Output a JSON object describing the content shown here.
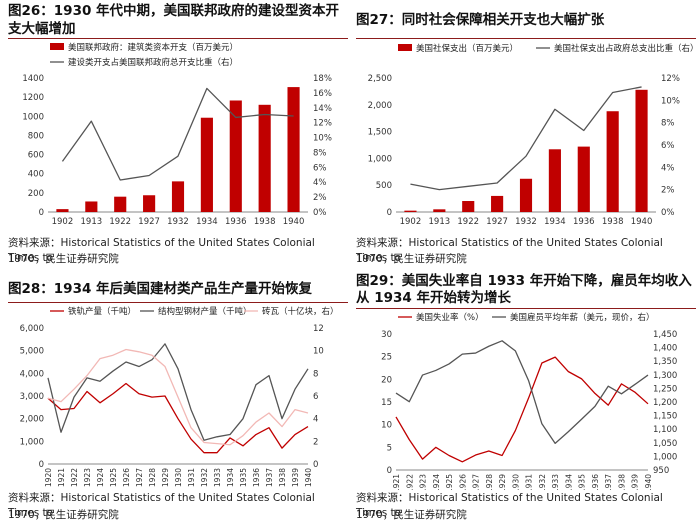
{
  "colors": {
    "red": "#c00000",
    "dark": "#555555",
    "pink": "#f2b8b5",
    "title_rule": "#8c1b1b"
  },
  "panels": [
    {
      "title_line1": "图26：1930 年代中期，美国联邦政府的建设型资本开",
      "title_line2": "支大幅增加",
      "source_line1": "资料来源：Historical Statistics of the United States Colonial Times to",
      "source_line2": "1970，民生证券研究院"
    },
    {
      "title_line1": "图27：同时社会保障相关开支也大幅扩张",
      "title_line2": "",
      "source_line1": "资料来源：Historical Statistics of the United States Colonial Times to",
      "source_line2": "1970，民生证券研究院"
    },
    {
      "title_line1": "图28：1934 年后美国建材类产品生产量开始恢复",
      "title_line2": "",
      "source_line1": "资料来源：Historical Statistics of the United States Colonial Times to",
      "source_line2": "1970，民生证券研究院"
    },
    {
      "title_line1": "图29：美国失业率自 1933 年开始下降，雇员年均收入",
      "title_line2": "从 1934 年开始转为增长",
      "source_line1": "资料来源：Historical Statistics of the United States Colonial Times to",
      "source_line2": "1970，民生证券研究院"
    }
  ],
  "chart_data": [
    {
      "type": "bar+line",
      "categories": [
        "1902",
        "1913",
        "1922",
        "1927",
        "1932",
        "1934",
        "1936",
        "1938",
        "1940"
      ],
      "series": [
        {
          "name": "美国联邦政府：建筑类资本开支（百万美元）",
          "kind": "bar",
          "axis": "left",
          "values": [
            30,
            110,
            160,
            175,
            320,
            985,
            1165,
            1120,
            1305
          ]
        },
        {
          "name": "建设类开支占美国联邦政府总开支比重（右）",
          "kind": "line",
          "axis": "right",
          "values": [
            6.8,
            12.2,
            4.3,
            4.9,
            7.5,
            16.6,
            12.7,
            13.1,
            12.9
          ]
        }
      ],
      "ylim_left": [
        0,
        1400
      ],
      "yticks_left": [
        0,
        200,
        400,
        600,
        800,
        1000,
        1200,
        1400
      ],
      "ylim_right": [
        0,
        18
      ],
      "yticks_right": [
        0,
        2,
        4,
        6,
        8,
        10,
        12,
        14,
        16,
        18
      ],
      "left_tick_labels": [
        "0",
        "200",
        "400",
        "600",
        "800",
        "1000",
        "1200",
        "1400"
      ],
      "right_tick_labels": [
        "0%",
        "2%",
        "4%",
        "6%",
        "8%",
        "10%",
        "12%",
        "14%",
        "16%",
        "18%"
      ]
    },
    {
      "type": "bar+line",
      "categories": [
        "1902",
        "1913",
        "1922",
        "1927",
        "1932",
        "1934",
        "1936",
        "1938",
        "1940"
      ],
      "series": [
        {
          "name": "美国社保支出（百万美元）",
          "kind": "bar",
          "axis": "left",
          "values": [
            25,
            50,
            205,
            300,
            620,
            1170,
            1220,
            1880,
            2280
          ]
        },
        {
          "name": "美国社保支出占政府总支出比重（右）",
          "kind": "line",
          "axis": "right",
          "values": [
            2.5,
            2.0,
            2.3,
            2.6,
            5.0,
            9.2,
            7.3,
            10.7,
            11.2
          ]
        }
      ],
      "ylim_left": [
        0,
        2500
      ],
      "yticks_left": [
        0,
        500,
        1000,
        1500,
        2000,
        2500
      ],
      "ylim_right": [
        0,
        12
      ],
      "yticks_right": [
        0,
        2,
        4,
        6,
        8,
        10,
        12
      ],
      "left_tick_labels": [
        "0",
        "500",
        "1,000",
        "1,500",
        "2,000",
        "2,500"
      ],
      "right_tick_labels": [
        "0%",
        "2%",
        "4%",
        "6%",
        "8%",
        "10%",
        "12%"
      ]
    },
    {
      "type": "line",
      "x": [
        "1920",
        "1921",
        "1922",
        "1923",
        "1924",
        "1925",
        "1926",
        "1927",
        "1928",
        "1929",
        "1930",
        "1931",
        "1932",
        "1933",
        "1934",
        "1935",
        "1936",
        "1937",
        "1938",
        "1939",
        "1940"
      ],
      "series": [
        {
          "name": "铁轨产量（千吨）",
          "axis": "left",
          "values": [
            2900,
            2400,
            2450,
            3200,
            2700,
            3100,
            3550,
            3100,
            2950,
            3000,
            2000,
            1100,
            500,
            500,
            1150,
            800,
            1300,
            1600,
            700,
            1300,
            1650
          ]
        },
        {
          "name": "结构型钢材产量（千吨）",
          "axis": "left",
          "values": [
            3800,
            1400,
            2950,
            3800,
            3650,
            4100,
            4500,
            4300,
            4600,
            5300,
            4200,
            2400,
            1050,
            1200,
            1300,
            2000,
            3500,
            3900,
            2000,
            3300,
            4200
          ]
        },
        {
          "name": "砖瓦（十亿块，右）",
          "axis": "right",
          "values": [
            5.8,
            5.5,
            6.6,
            7.8,
            9.3,
            9.6,
            10.1,
            9.9,
            9.6,
            8.6,
            5.9,
            3.2,
            1.9,
            1.8,
            1.7,
            2.5,
            3.7,
            4.5,
            3.3,
            4.8,
            4.5
          ]
        }
      ],
      "ylim_left": [
        0,
        6000
      ],
      "yticks_left": [
        0,
        1000,
        2000,
        3000,
        4000,
        5000,
        6000
      ],
      "ylim_right": [
        0,
        12
      ],
      "yticks_right": [
        0,
        2,
        4,
        6,
        8,
        10,
        12
      ],
      "left_tick_labels": [
        "0",
        "1,000",
        "2,000",
        "3,000",
        "4,000",
        "5,000",
        "6,000"
      ],
      "right_tick_labels": [
        "0",
        "2",
        "4",
        "6",
        "8",
        "10",
        "12"
      ]
    },
    {
      "type": "line",
      "x": [
        "1921",
        "1922",
        "1923",
        "1924",
        "1925",
        "1926",
        "1927",
        "1928",
        "1929",
        "1930",
        "1931",
        "1932",
        "1933",
        "1934",
        "1935",
        "1936",
        "1937",
        "1938",
        "1939",
        "1940"
      ],
      "series": [
        {
          "name": "美国失业率（%）",
          "axis": "left",
          "values": [
            11.7,
            6.7,
            2.4,
            5.0,
            3.2,
            1.8,
            3.3,
            4.2,
            3.2,
            8.7,
            15.9,
            23.6,
            24.9,
            21.7,
            20.1,
            16.9,
            14.3,
            19.0,
            17.2,
            14.6
          ]
        },
        {
          "name": "美国雇员平均年薪（美元，现价，右）",
          "axis": "right",
          "values": [
            1233,
            1201,
            1299,
            1316,
            1340,
            1376,
            1380,
            1405,
            1425,
            1388,
            1278,
            1120,
            1048,
            1091,
            1137,
            1184,
            1258,
            1230,
            1264,
            1299
          ]
        }
      ],
      "ylim_left": [
        0,
        30
      ],
      "yticks_left": [
        0,
        5,
        10,
        15,
        20,
        25,
        30
      ],
      "ylim_right": [
        950,
        1450
      ],
      "yticks_right": [
        950,
        1000,
        1050,
        1100,
        1150,
        1200,
        1250,
        1300,
        1350,
        1400,
        1450
      ],
      "left_tick_labels": [
        "0",
        "5",
        "10",
        "15",
        "20",
        "25",
        "30"
      ],
      "right_tick_labels": [
        "950",
        "1,000",
        "1,050",
        "1,100",
        "1,150",
        "1,200",
        "1,250",
        "1,300",
        "1,350",
        "1,400",
        "1,450"
      ]
    }
  ]
}
